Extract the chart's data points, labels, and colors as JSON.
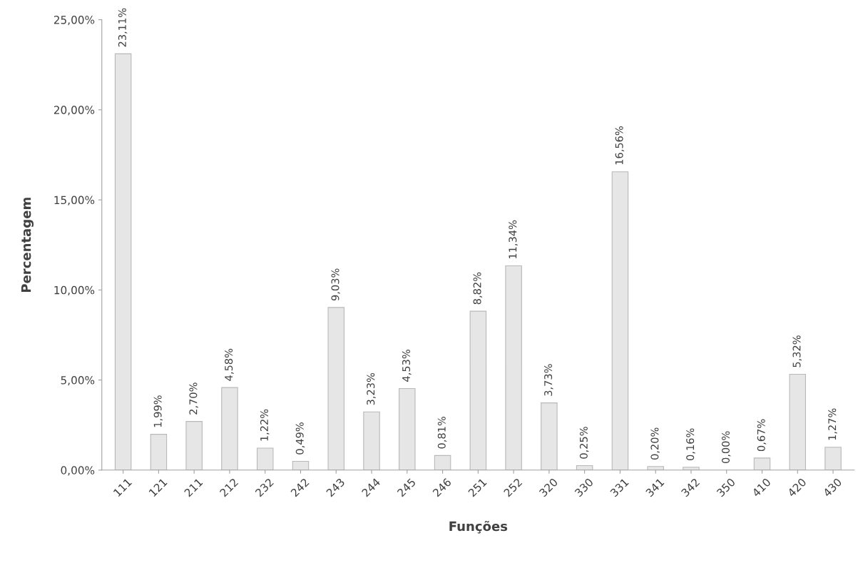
{
  "chart_data": {
    "type": "bar",
    "xlabel": "Funções",
    "ylabel": "Percentagem",
    "categories": [
      "111",
      "121",
      "211",
      "212",
      "232",
      "242",
      "243",
      "244",
      "245",
      "246",
      "251",
      "252",
      "320",
      "330",
      "331",
      "341",
      "342",
      "350",
      "410",
      "420",
      "430"
    ],
    "values": [
      23.11,
      1.99,
      2.7,
      4.58,
      1.22,
      0.49,
      9.03,
      3.23,
      4.53,
      0.81,
      8.82,
      11.34,
      3.73,
      0.25,
      16.56,
      0.2,
      0.16,
      0.0,
      0.67,
      5.32,
      1.27
    ],
    "value_labels": [
      "23,11%",
      "1,99%",
      "2,70%",
      "4,58%",
      "1,22%",
      "0,49%",
      "9,03%",
      "3,23%",
      "4,53%",
      "0,81%",
      "8,82%",
      "11,34%",
      "3,73%",
      "0,25%",
      "16,56%",
      "0,20%",
      "0,16%",
      "0,00%",
      "0,67%",
      "5,32%",
      "1,27%"
    ],
    "color": "#e6e6e6",
    "ylim": [
      0,
      25
    ],
    "yticks": [
      {
        "value": 0,
        "label": "0,00%"
      },
      {
        "value": 5,
        "label": "5,00%"
      },
      {
        "value": 10,
        "label": "10,00%"
      },
      {
        "value": 15,
        "label": "15,00%"
      },
      {
        "value": 20,
        "label": "20,00%"
      },
      {
        "value": 25,
        "label": "25,00%"
      }
    ],
    "grid": false,
    "legend": false
  }
}
